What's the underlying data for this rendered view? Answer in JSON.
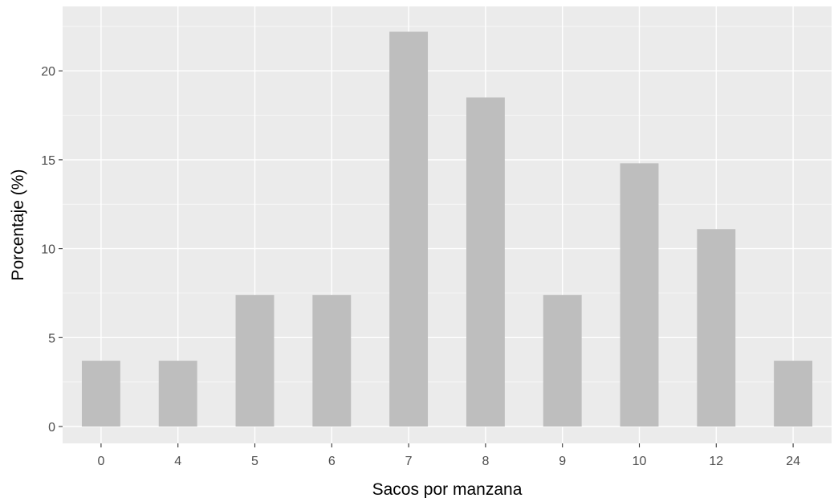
{
  "chart_data": {
    "type": "bar",
    "title": "",
    "xlabel": "Sacos por manzana",
    "ylabel": "Porcentaje (%)",
    "categories": [
      "0",
      "4",
      "5",
      "6",
      "7",
      "8",
      "9",
      "10",
      "12",
      "24"
    ],
    "values": [
      3.7,
      3.7,
      7.4,
      7.4,
      22.2,
      18.5,
      7.4,
      14.8,
      11.1,
      3.7
    ],
    "ylim": [
      0,
      23.3
    ],
    "yticks": [
      0,
      5,
      10,
      15,
      20
    ],
    "ytick_labels": [
      "0",
      "5",
      "10",
      "15",
      "20"
    ],
    "grid": true,
    "legend": "none"
  },
  "colors": {
    "panel_background": "#ebebeb",
    "grid_major": "#ffffff",
    "bar_fill": "#bebebe",
    "tick_text": "#4d4d4d",
    "axis_title": "#000000"
  }
}
